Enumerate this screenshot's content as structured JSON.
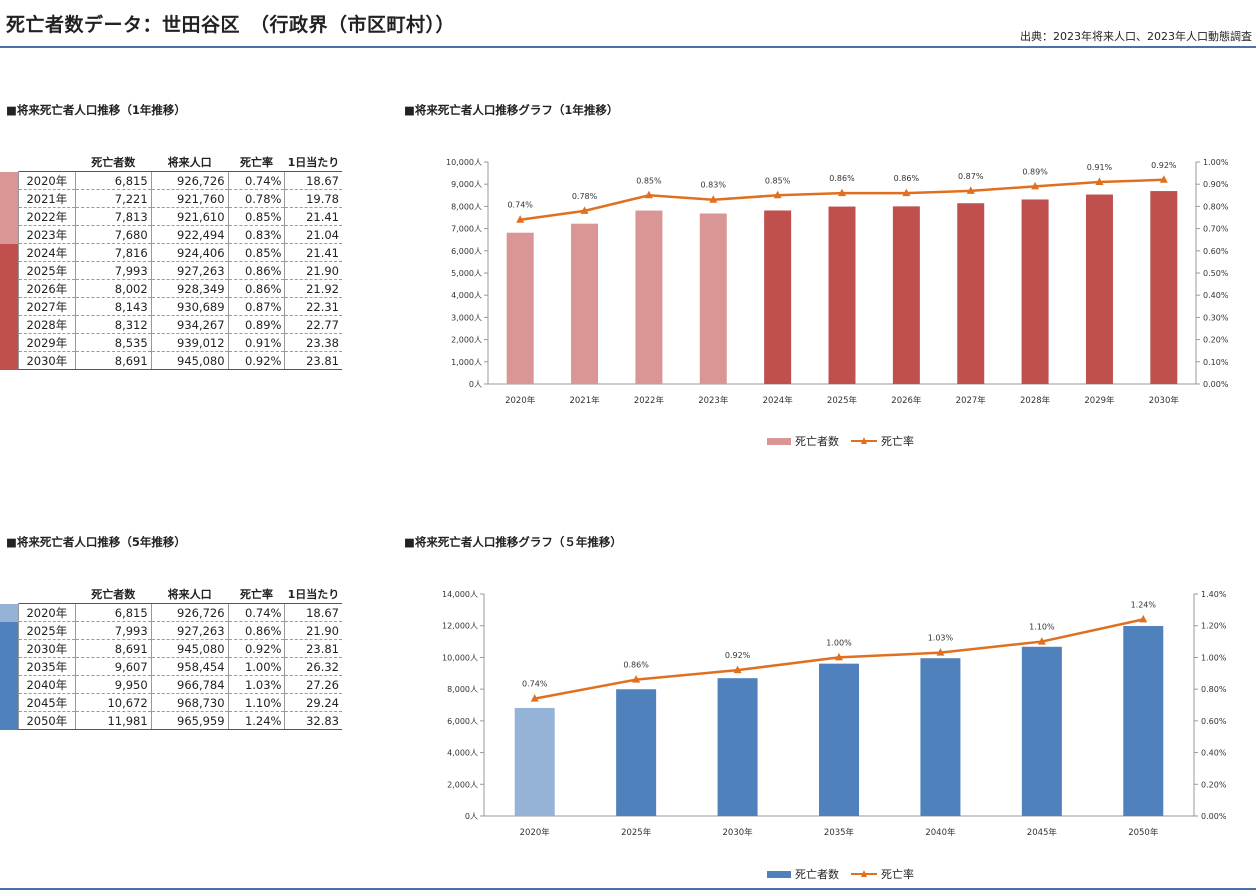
{
  "header": {
    "title": "死亡者数データ：世田谷区　（行政界（市区町村））",
    "source": "出典：2023年将来人口、2023年人口動態調査"
  },
  "table_headers": {
    "deaths": "死亡者数",
    "population": "将来人口",
    "rate": "死亡率",
    "per_day": "1日当たり"
  },
  "section1": {
    "table_title": "■将来死亡者人口推移（1年推移）",
    "chart_title": "■将来死亡者人口推移グラフ（1年推移）",
    "rows": [
      {
        "year": "2020年",
        "deaths": "6,815",
        "population": "926,726",
        "rate": "0.74%",
        "per_day": "18.67",
        "color": "#d99694"
      },
      {
        "year": "2021年",
        "deaths": "7,221",
        "population": "921,760",
        "rate": "0.78%",
        "per_day": "19.78",
        "color": "#d99694"
      },
      {
        "year": "2022年",
        "deaths": "7,813",
        "population": "921,610",
        "rate": "0.85%",
        "per_day": "21.41",
        "color": "#d99694"
      },
      {
        "year": "2023年",
        "deaths": "7,680",
        "population": "922,494",
        "rate": "0.83%",
        "per_day": "21.04",
        "color": "#d99694"
      },
      {
        "year": "2024年",
        "deaths": "7,816",
        "population": "924,406",
        "rate": "0.85%",
        "per_day": "21.41",
        "color": "#c0504d"
      },
      {
        "year": "2025年",
        "deaths": "7,993",
        "population": "927,263",
        "rate": "0.86%",
        "per_day": "21.90",
        "color": "#c0504d"
      },
      {
        "year": "2026年",
        "deaths": "8,002",
        "population": "928,349",
        "rate": "0.86%",
        "per_day": "21.92",
        "color": "#c0504d"
      },
      {
        "year": "2027年",
        "deaths": "8,143",
        "population": "930,689",
        "rate": "0.87%",
        "per_day": "22.31",
        "color": "#c0504d"
      },
      {
        "year": "2028年",
        "deaths": "8,312",
        "population": "934,267",
        "rate": "0.89%",
        "per_day": "22.77",
        "color": "#c0504d"
      },
      {
        "year": "2029年",
        "deaths": "8,535",
        "population": "939,012",
        "rate": "0.91%",
        "per_day": "23.38",
        "color": "#c0504d"
      },
      {
        "year": "2030年",
        "deaths": "8,691",
        "population": "945,080",
        "rate": "0.92%",
        "per_day": "23.81",
        "color": "#c0504d"
      }
    ]
  },
  "section2": {
    "table_title": "■将来死亡者人口推移（5年推移）",
    "chart_title": "■将来死亡者人口推移グラフ（５年推移）",
    "rows": [
      {
        "year": "2020年",
        "deaths": "6,815",
        "population": "926,726",
        "rate": "0.74%",
        "per_day": "18.67",
        "color": "#95b3d7"
      },
      {
        "year": "2025年",
        "deaths": "7,993",
        "population": "927,263",
        "rate": "0.86%",
        "per_day": "21.90",
        "color": "#4f81bd"
      },
      {
        "year": "2030年",
        "deaths": "8,691",
        "population": "945,080",
        "rate": "0.92%",
        "per_day": "23.81",
        "color": "#4f81bd"
      },
      {
        "year": "2035年",
        "deaths": "9,607",
        "population": "958,454",
        "rate": "1.00%",
        "per_day": "26.32",
        "color": "#4f81bd"
      },
      {
        "year": "2040年",
        "deaths": "9,950",
        "population": "966,784",
        "rate": "1.03%",
        "per_day": "27.26",
        "color": "#4f81bd"
      },
      {
        "year": "2045年",
        "deaths": "10,672",
        "population": "968,730",
        "rate": "1.10%",
        "per_day": "29.24",
        "color": "#4f81bd"
      },
      {
        "year": "2050年",
        "deaths": "11,981",
        "population": "965,959",
        "rate": "1.24%",
        "per_day": "32.83",
        "color": "#4f81bd"
      }
    ]
  },
  "chart_data": [
    {
      "type": "bar",
      "title": "■将来死亡者人口推移グラフ（1年推移）",
      "categories": [
        "2020年",
        "2021年",
        "2022年",
        "2023年",
        "2024年",
        "2025年",
        "2026年",
        "2027年",
        "2028年",
        "2029年",
        "2030年"
      ],
      "series": [
        {
          "name": "死亡者数",
          "type": "bar",
          "axis": "left",
          "values": [
            6815,
            7221,
            7813,
            7680,
            7816,
            7993,
            8002,
            8143,
            8312,
            8535,
            8691
          ],
          "colors": [
            "#d99694",
            "#d99694",
            "#d99694",
            "#d99694",
            "#c0504d",
            "#c0504d",
            "#c0504d",
            "#c0504d",
            "#c0504d",
            "#c0504d",
            "#c0504d"
          ]
        },
        {
          "name": "死亡率",
          "type": "line",
          "axis": "right",
          "values": [
            0.74,
            0.78,
            0.85,
            0.83,
            0.85,
            0.86,
            0.86,
            0.87,
            0.89,
            0.91,
            0.92
          ],
          "labels": [
            "0.74%",
            "0.78%",
            "0.85%",
            "0.83%",
            "0.85%",
            "0.86%",
            "0.86%",
            "0.87%",
            "0.89%",
            "0.91%",
            "0.92%"
          ],
          "color": "#e07020"
        }
      ],
      "ylim": [
        0,
        10000
      ],
      "ytick_step": 1000,
      "yticks": [
        "0人",
        "1,000人",
        "2,000人",
        "3,000人",
        "4,000人",
        "5,000人",
        "6,000人",
        "7,000人",
        "8,000人",
        "9,000人",
        "10,000人"
      ],
      "y2lim": [
        0,
        1.0
      ],
      "y2ticks": [
        "0.00%",
        "0.10%",
        "0.20%",
        "0.30%",
        "0.40%",
        "0.50%",
        "0.60%",
        "0.70%",
        "0.80%",
        "0.90%",
        "1.00%"
      ],
      "legend": {
        "bar_label": "死亡者数",
        "line_label": "死亡率",
        "bar_color": "#d99694",
        "placement": "bottom"
      },
      "grid": false
    },
    {
      "type": "bar",
      "title": "■将来死亡者人口推移グラフ（５年推移）",
      "categories": [
        "2020年",
        "2025年",
        "2030年",
        "2035年",
        "2040年",
        "2045年",
        "2050年"
      ],
      "series": [
        {
          "name": "死亡者数",
          "type": "bar",
          "axis": "left",
          "values": [
            6815,
            7993,
            8691,
            9607,
            9950,
            10672,
            11981
          ],
          "colors": [
            "#95b3d7",
            "#4f81bd",
            "#4f81bd",
            "#4f81bd",
            "#4f81bd",
            "#4f81bd",
            "#4f81bd"
          ]
        },
        {
          "name": "死亡率",
          "type": "line",
          "axis": "right",
          "values": [
            0.74,
            0.86,
            0.92,
            1.0,
            1.03,
            1.1,
            1.24
          ],
          "labels": [
            "0.74%",
            "0.86%",
            "0.92%",
            "1.00%",
            "1.03%",
            "1.10%",
            "1.24%"
          ],
          "color": "#e07020"
        }
      ],
      "ylim": [
        0,
        14000
      ],
      "ytick_step": 2000,
      "yticks": [
        "0人",
        "2,000人",
        "4,000人",
        "6,000人",
        "8,000人",
        "10,000人",
        "12,000人",
        "14,000人"
      ],
      "y2lim": [
        0,
        1.4
      ],
      "y2ticks": [
        "0.00%",
        "0.20%",
        "0.40%",
        "0.60%",
        "0.80%",
        "1.00%",
        "1.20%",
        "1.40%"
      ],
      "legend": {
        "bar_label": "死亡者数",
        "line_label": "死亡率",
        "bar_color": "#4f81bd",
        "placement": "bottom"
      },
      "grid": false
    }
  ]
}
